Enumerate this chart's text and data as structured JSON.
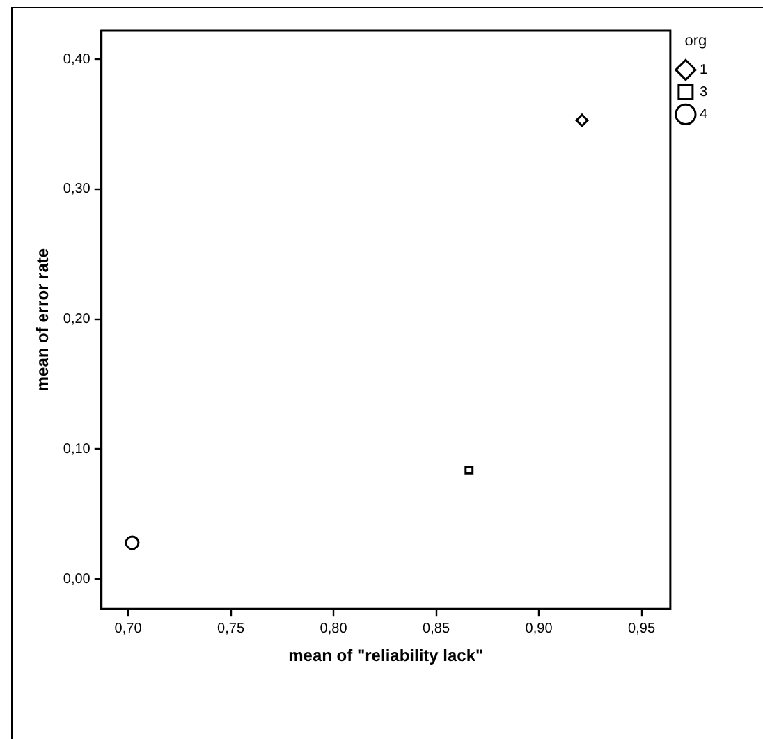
{
  "chart_data": {
    "type": "scatter",
    "xlabel": "mean of \"reliability lack\"",
    "ylabel": "mean of error rate",
    "legend_title": "org",
    "legend": "top right",
    "grid": false,
    "xlim": [
      0.687,
      0.964
    ],
    "xticks": [
      {
        "value": 0.7,
        "label": "0,70"
      },
      {
        "value": 0.75,
        "label": "0,75"
      },
      {
        "value": 0.8,
        "label": "0,80"
      },
      {
        "value": 0.85,
        "label": "0,85"
      },
      {
        "value": 0.9,
        "label": "0,90"
      },
      {
        "value": 0.95,
        "label": "0,95"
      }
    ],
    "ylim": [
      -0.023,
      0.422
    ],
    "yticks": [
      {
        "value": 0,
        "label": "0,00"
      },
      {
        "value": 0.1,
        "label": "0,10"
      },
      {
        "value": 0.2,
        "label": "0,20"
      },
      {
        "value": 0.3,
        "label": "0,30"
      },
      {
        "value": 0.4,
        "label": "0,40"
      }
    ],
    "series": [
      {
        "name": "1",
        "color": "#000000",
        "marker": "diamond",
        "x": [
          0.921
        ],
        "values": [
          0.353
        ]
      },
      {
        "name": "3",
        "color": "#000000",
        "marker": "square",
        "x": [
          0.866
        ],
        "values": [
          0.084
        ]
      },
      {
        "name": "4",
        "color": "#000000",
        "marker": "circle",
        "x": [
          0.702
        ],
        "values": [
          0.028
        ]
      }
    ]
  }
}
